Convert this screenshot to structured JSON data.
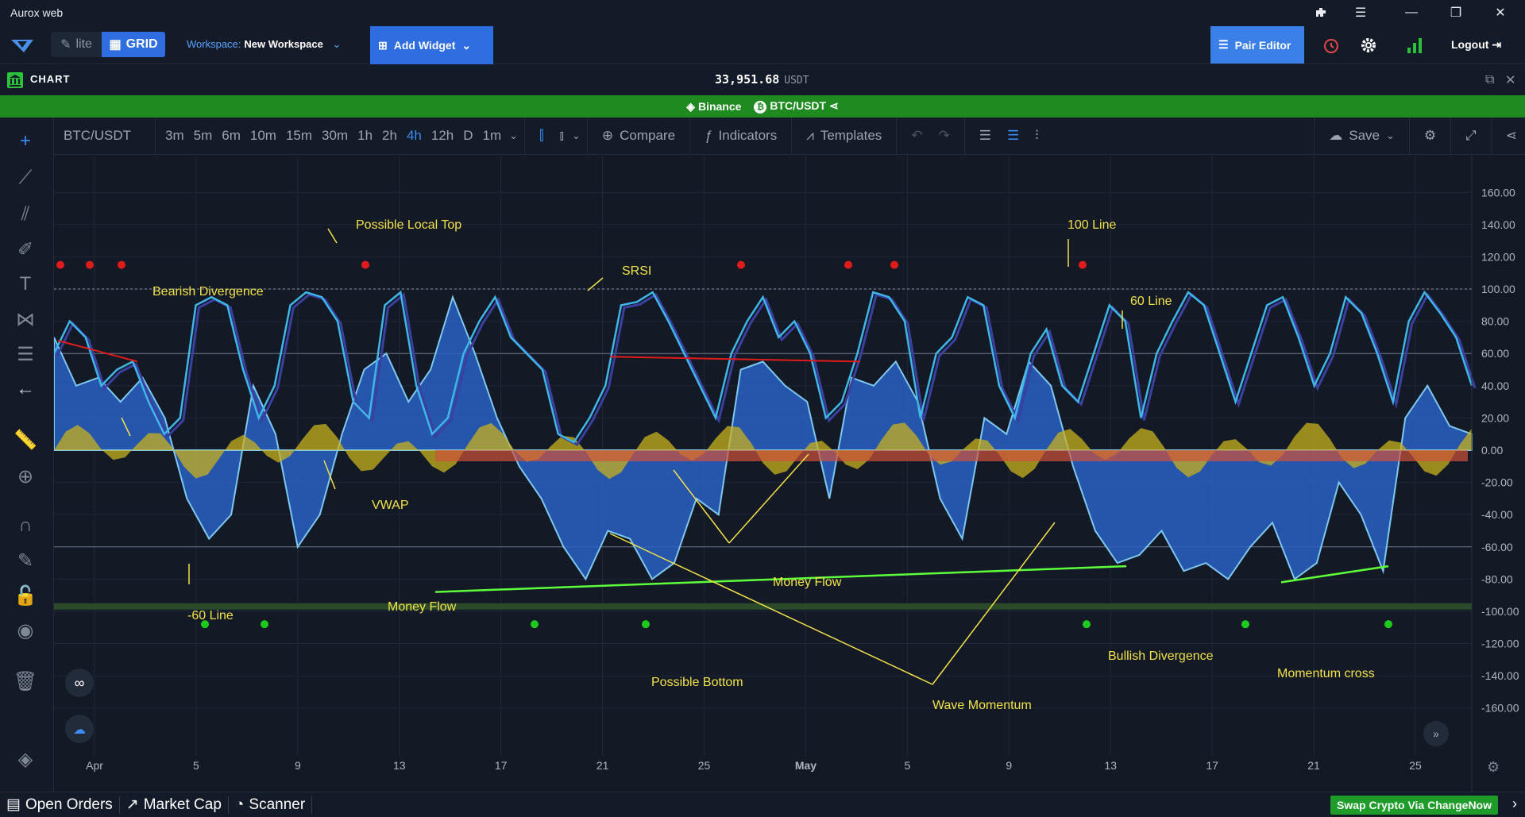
{
  "window": {
    "title": "Aurox web"
  },
  "topbar": {
    "mode_lite": "lite",
    "mode_grid": "GRID",
    "workspace_label": "Workspace:",
    "workspace_name": "New Workspace",
    "add_widget": "Add Widget",
    "pair_editor": "Pair Editor",
    "logout": "Logout"
  },
  "chart_header": {
    "label": "CHART",
    "price": "33,951.68",
    "quote": "USDT"
  },
  "pairbar": {
    "exchange": "Binance",
    "pair": "BTC/USDT"
  },
  "toolbar": {
    "symbol": "BTC/USDT",
    "timeframes": [
      "3m",
      "5m",
      "6m",
      "10m",
      "15m",
      "30m",
      "1h",
      "2h",
      "4h",
      "12h",
      "D",
      "1m"
    ],
    "active_timeframe": "4h",
    "compare": "Compare",
    "indicators": "Indicators",
    "templates": "Templates",
    "save": "Save"
  },
  "chart_data": {
    "type": "line",
    "y_ticks": [
      "160.00",
      "140.00",
      "120.00",
      "100.00",
      "80.00",
      "60.00",
      "40.00",
      "20.00",
      "0.00",
      "-20.00",
      "-40.00",
      "-60.00",
      "-80.00",
      "-100.00",
      "-120.00",
      "-140.00",
      "-160.00"
    ],
    "ylim": [
      -170,
      170
    ],
    "x_ticks": [
      "Apr",
      "5",
      "9",
      "13",
      "17",
      "21",
      "25",
      "May",
      "5",
      "9",
      "13",
      "17",
      "21",
      "25"
    ],
    "reference_lines": [
      100,
      60,
      0,
      -60
    ],
    "series": [
      {
        "role": "srsi",
        "color": "#3fb6e8",
        "values": [
          60,
          80,
          70,
          40,
          50,
          55,
          30,
          10,
          20,
          90,
          95,
          90,
          50,
          20,
          40,
          90,
          98,
          95,
          80,
          30,
          20,
          90,
          98,
          40,
          10,
          20,
          60,
          80,
          95,
          70,
          60,
          50,
          10,
          5,
          20,
          40,
          90,
          92,
          98,
          80,
          60,
          40,
          20,
          60,
          80,
          95,
          70,
          80,
          60,
          20,
          30,
          60,
          98,
          95,
          80,
          20,
          60,
          70,
          95,
          90,
          40,
          20,
          60,
          75,
          40,
          30,
          60,
          90,
          80,
          20,
          60,
          80,
          98,
          90,
          60,
          30,
          60,
          90,
          95,
          70,
          40,
          60,
          95,
          85,
          60,
          30,
          80,
          98,
          85,
          70,
          40
        ]
      },
      {
        "role": "wave",
        "color": "#2a60c4",
        "values": [
          70,
          40,
          45,
          30,
          45,
          20,
          -30,
          -55,
          -40,
          40,
          10,
          -60,
          -40,
          10,
          50,
          60,
          30,
          50,
          95,
          60,
          20,
          -10,
          -30,
          -60,
          -80,
          -50,
          -55,
          -80,
          -70,
          -30,
          -40,
          50,
          55,
          40,
          30,
          -30,
          45,
          40,
          55,
          30,
          -30,
          -55,
          20,
          10,
          55,
          40,
          -10,
          -50,
          -70,
          -65,
          -50,
          -75,
          -70,
          -80,
          -60,
          -45,
          -80,
          -70,
          -20,
          -40,
          -75,
          20,
          40,
          15,
          10
        ]
      }
    ],
    "annotations": [
      "Possible Local Top",
      "100 Line",
      "SRSI",
      "Bearish Divergence",
      "60 Line",
      "VWAP",
      "Money Flow",
      "-60 Line",
      "Money Flow",
      "Possible Bottom",
      "Wave Momentum",
      "Bullish Divergence",
      "Momentum cross"
    ]
  },
  "bottom": {
    "open_orders": "Open Orders",
    "market_cap": "Market Cap",
    "scanner": "Scanner",
    "swap": "Swap Crypto Via ChangeNow"
  },
  "colors": {
    "accent": "#2f6ee0",
    "green": "#1f8a1f",
    "annotation": "#f2e24a"
  }
}
